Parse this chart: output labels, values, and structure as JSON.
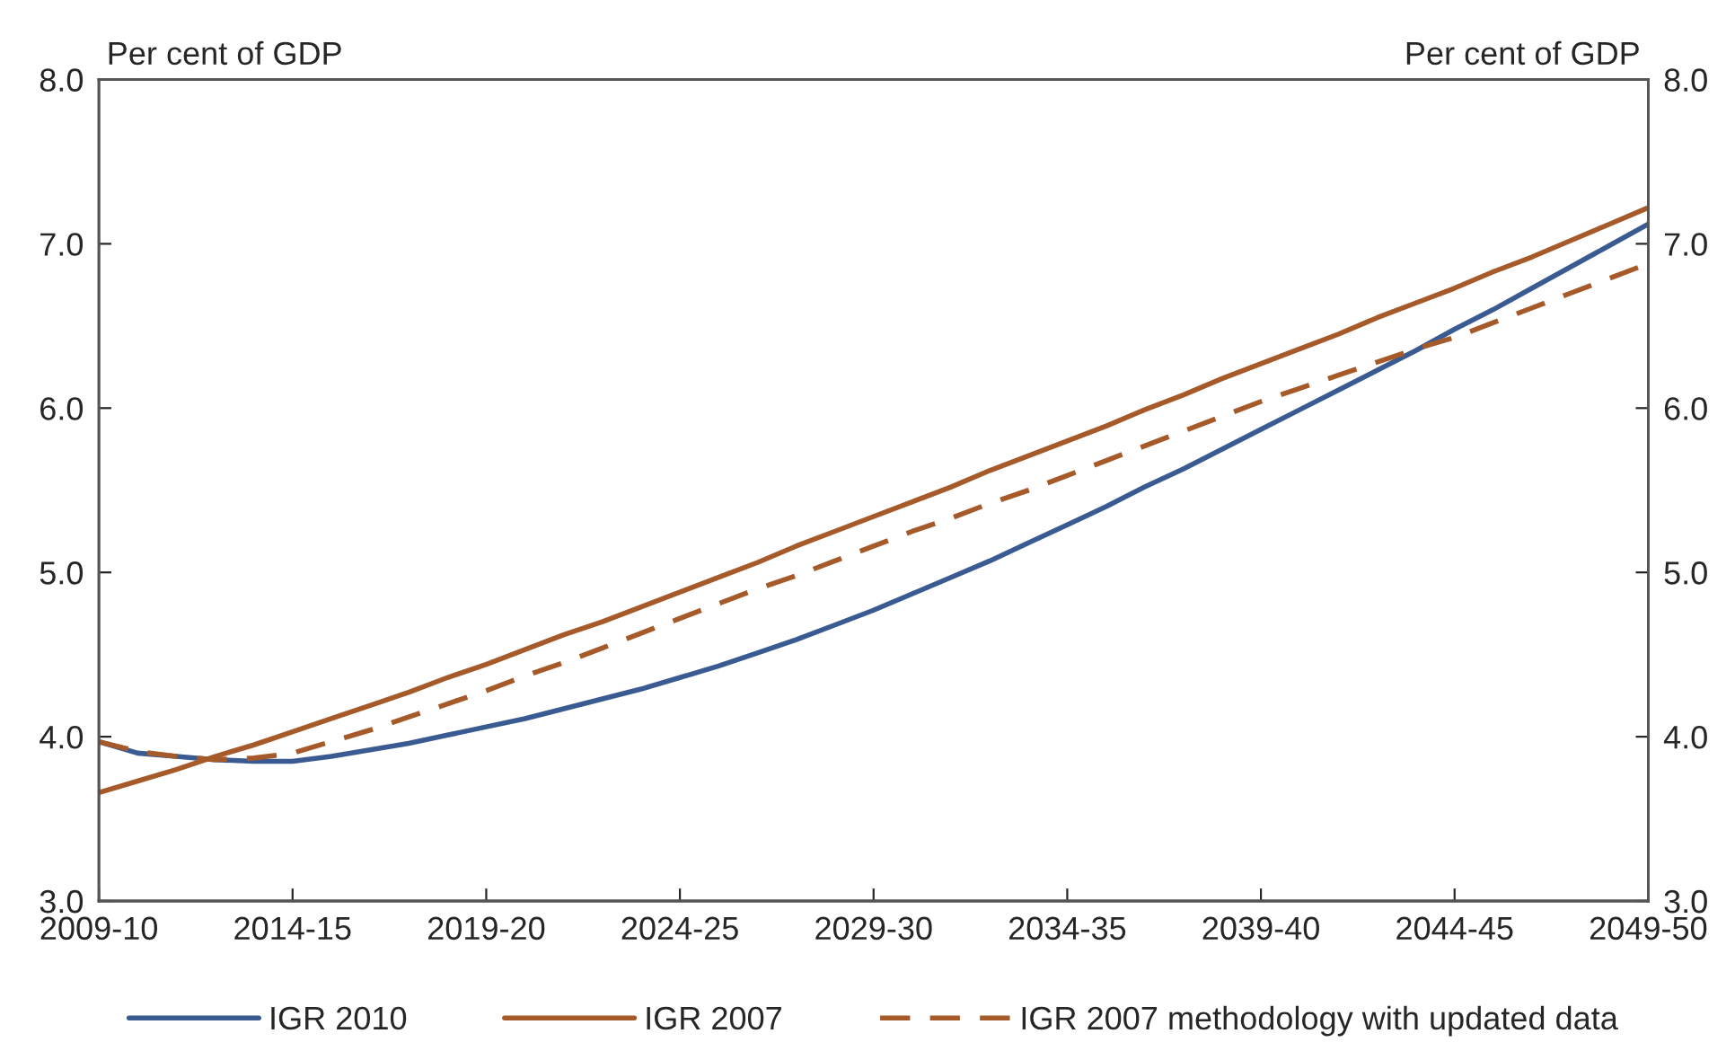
{
  "chart_data": {
    "type": "line",
    "ylabel": "Per cent of GDP",
    "y2label": "Per cent of GDP",
    "categories": [
      "2009-10",
      null,
      null,
      null,
      null,
      "2014-15",
      null,
      null,
      null,
      null,
      "2019-20",
      null,
      null,
      null,
      null,
      "2024-25",
      null,
      null,
      null,
      null,
      "2029-30",
      null,
      null,
      null,
      null,
      "2034-35",
      null,
      null,
      null,
      null,
      "2039-40",
      null,
      null,
      null,
      null,
      "2044-45",
      null,
      null,
      null,
      null,
      "2049-50"
    ],
    "ylim": [
      3,
      8
    ],
    "yticks": [
      {
        "value": 3,
        "label": "3.0"
      },
      {
        "value": 4,
        "label": "4.0"
      },
      {
        "value": 5,
        "label": "5.0"
      },
      {
        "value": 6,
        "label": "6.0"
      },
      {
        "value": 7,
        "label": "7.0"
      },
      {
        "value": 8,
        "label": "8.0"
      }
    ],
    "y2lim": [
      3,
      8
    ],
    "y2ticks": [
      {
        "value": 3,
        "label": "3.0"
      },
      {
        "value": 4,
        "label": "4.0"
      },
      {
        "value": 5,
        "label": "5.0"
      },
      {
        "value": 6,
        "label": "6.0"
      },
      {
        "value": 7,
        "label": "7.0"
      },
      {
        "value": 8,
        "label": "8.0"
      }
    ],
    "grid": false,
    "legend": "bottom",
    "marker": "none",
    "series": [
      {
        "name": "IGR 2010",
        "color": "#3a5a92",
        "line_style": "solid",
        "values": [
          3.97,
          3.9,
          3.88,
          3.86,
          3.85,
          3.85,
          3.88,
          3.92,
          3.96,
          4.01,
          4.06,
          4.11,
          4.17,
          4.23,
          4.29,
          4.36,
          4.43,
          4.51,
          4.59,
          4.68,
          4.77,
          4.87,
          4.97,
          5.07,
          5.18,
          5.29,
          5.4,
          5.52,
          5.63,
          5.75,
          5.87,
          5.99,
          6.11,
          6.23,
          6.35,
          6.48,
          6.6,
          6.73,
          6.86,
          6.99,
          7.12
        ]
      },
      {
        "name": "IGR 2007",
        "color": "#a65a2a",
        "line_style": "solid",
        "values": [
          3.66,
          3.73,
          3.8,
          3.88,
          3.95,
          4.03,
          4.11,
          4.19,
          4.27,
          4.36,
          4.44,
          4.53,
          4.62,
          4.7,
          4.79,
          4.88,
          4.97,
          5.06,
          5.16,
          5.25,
          5.34,
          5.43,
          5.52,
          5.62,
          5.71,
          5.8,
          5.89,
          5.99,
          6.08,
          6.18,
          6.27,
          6.36,
          6.45,
          6.55,
          6.64,
          6.73,
          6.83,
          6.92,
          7.02,
          7.12,
          7.22
        ]
      },
      {
        "name": "IGR 2007 methodology with updated data",
        "color": "#a65a2a",
        "line_style": "dashed",
        "values": [
          3.97,
          3.91,
          3.88,
          3.86,
          3.87,
          3.9,
          3.97,
          4.04,
          4.12,
          4.2,
          4.28,
          4.37,
          4.45,
          4.54,
          4.63,
          4.72,
          4.81,
          4.9,
          4.98,
          5.07,
          5.16,
          5.25,
          5.33,
          5.42,
          5.5,
          5.59,
          5.68,
          5.77,
          5.86,
          5.95,
          6.04,
          6.12,
          6.2,
          6.28,
          6.36,
          6.43,
          6.52,
          6.61,
          6.7,
          6.79,
          6.88
        ]
      }
    ]
  }
}
